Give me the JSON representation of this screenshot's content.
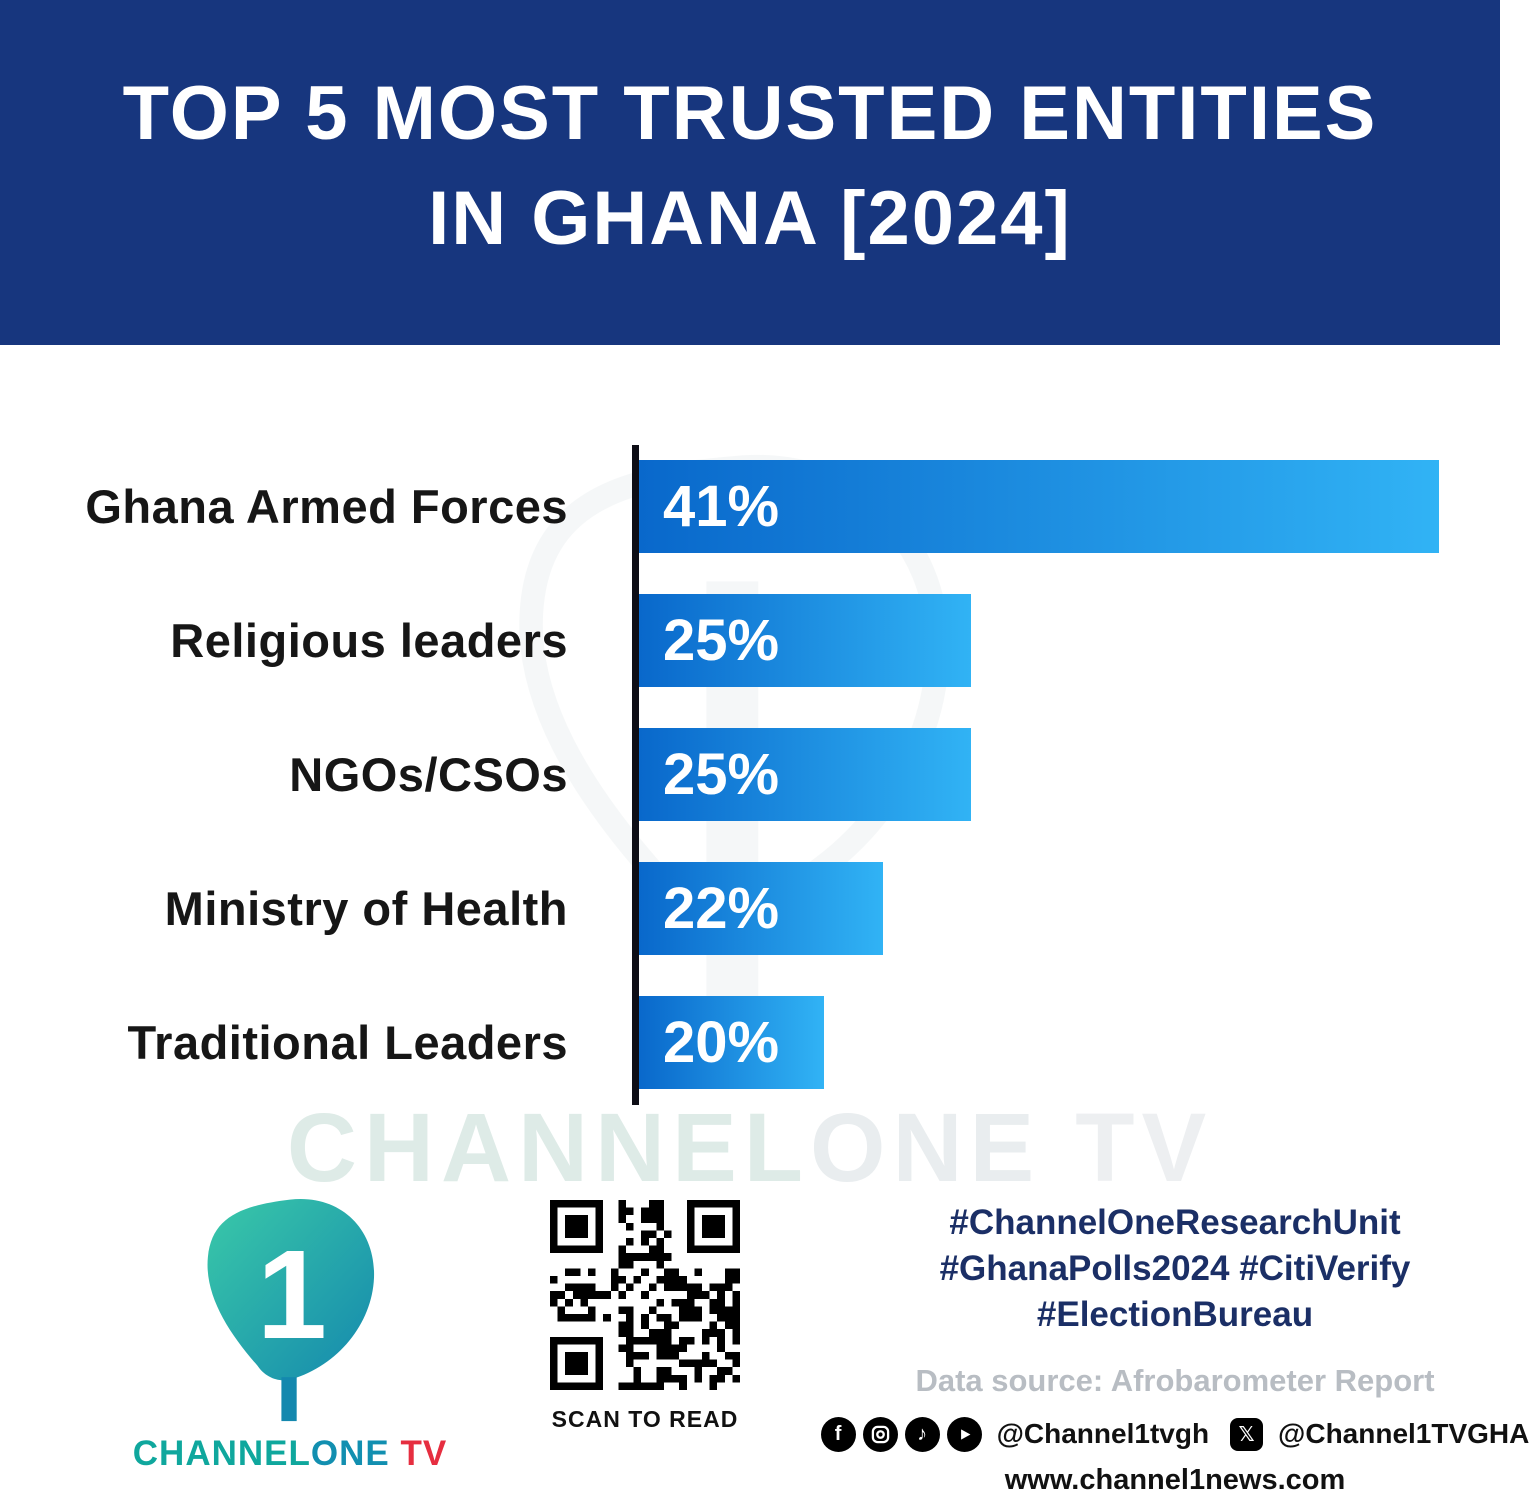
{
  "header": {
    "title_line1": "TOP 5 MOST TRUSTED ENTITIES",
    "title_line2": "IN GHANA [2024]",
    "background_color": "#17367E"
  },
  "chart_data": {
    "type": "bar",
    "orientation": "horizontal",
    "title": "Top 5 Most Trusted Entities in Ghana [2024]",
    "categories": [
      "Ghana Armed Forces",
      "Religious leaders",
      "NGOs/CSOs",
      "Ministry of Health",
      "Traditional Leaders"
    ],
    "values": [
      41,
      25,
      25,
      22,
      20
    ],
    "data_labels": [
      "41%",
      "25%",
      "25%",
      "22%",
      "20%"
    ],
    "unit": "percent",
    "legend": false,
    "gridlines": false,
    "bar_gradient": [
      "#0968CB",
      "#31B3F5"
    ],
    "axis_color": "#0D0D15"
  },
  "watermark": {
    "part1": "CHANNEL",
    "part2": "ONE",
    "part3": "TV"
  },
  "footer": {
    "brand": {
      "digit": "1",
      "channel": "CHANNEL",
      "one": "ONE",
      "tv": " TV",
      "teal": "#0FA79D",
      "red": "#E62E40"
    },
    "qr": {
      "caption": "SCAN TO READ"
    },
    "hashtags": {
      "line1": "#ChannelOneResearchUnit",
      "line2": "#GhanaPolls2024 #CitiVerify",
      "line3": "#ElectionBureau"
    },
    "data_source": "Data source: Afrobarometer Report",
    "handles": {
      "main": "@Channel1tvgh",
      "x": "@Channel1TVGHA"
    },
    "website": "www.channel1news.com",
    "hashtag_color": "#1B2F66"
  }
}
